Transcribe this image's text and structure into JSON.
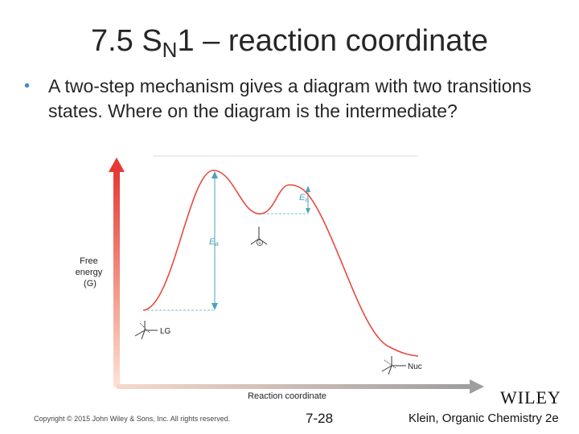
{
  "slide": {
    "title_pre": "7.5 S",
    "title_sub": "N",
    "title_post": "1 – reaction coordinate",
    "bullet": "A two-step mechanism gives a diagram with two transitions states. Where on the diagram is the intermediate?"
  },
  "diagram": {
    "y_axis_label_lines": [
      "Free",
      "energy",
      "(G)"
    ],
    "x_axis_label": "Reaction coordinate",
    "ea_label": "E",
    "ea_sub": "a",
    "lg_label": "LG",
    "nuc_label": "Nuc",
    "carbocation_charge": "+",
    "colors": {
      "curve": "#e8493f",
      "arrow_ea": "#4aa3b8",
      "dashed": "#7fbfcf",
      "axis_top": "#e53935"
    }
  },
  "footer": {
    "copyright": "Copyright © 2015 John Wiley & Sons, Inc. All rights reserved.",
    "page": "7-28",
    "book": "Klein, Organic Chemistry 2e",
    "publisher": "WILEY"
  }
}
